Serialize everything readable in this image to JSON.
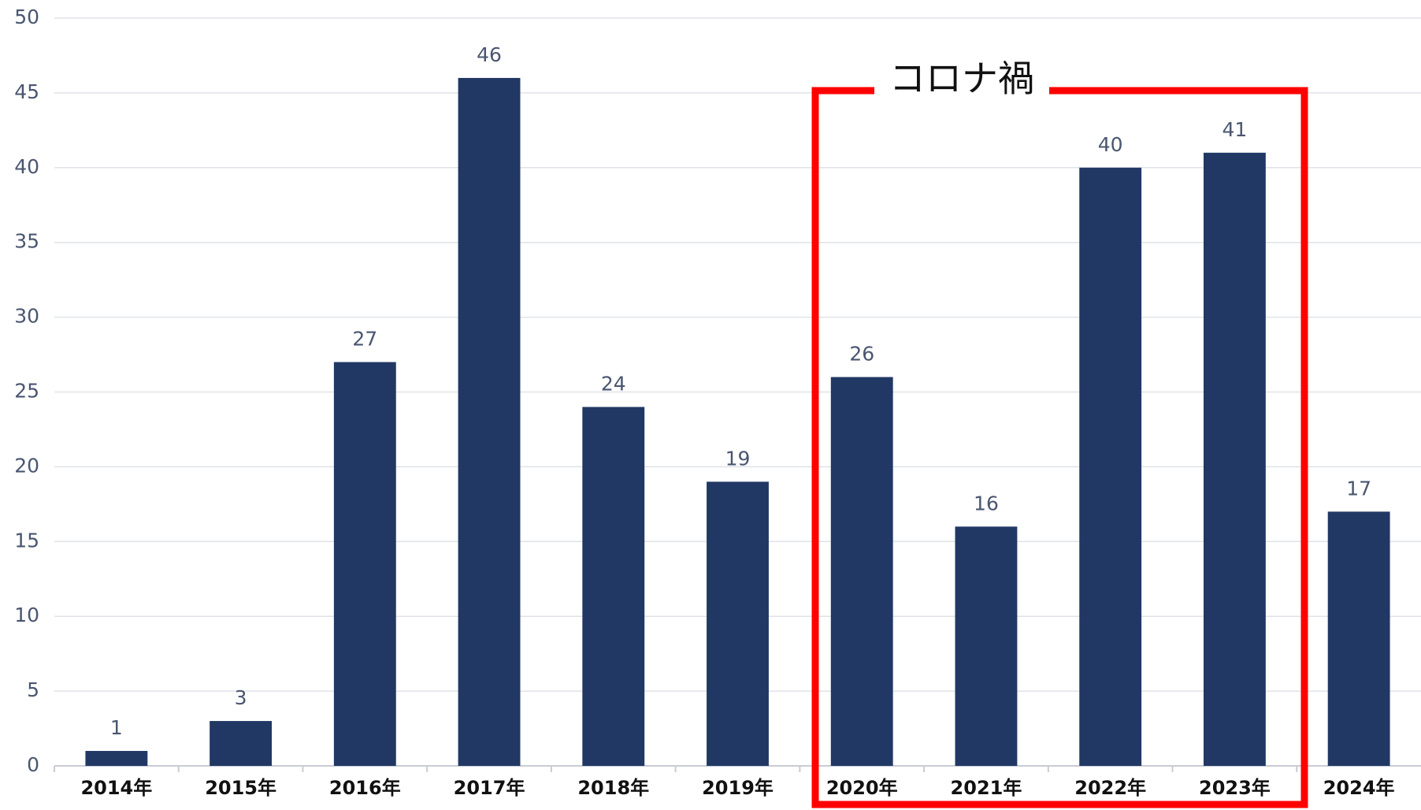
{
  "chart_data": {
    "type": "bar",
    "categories": [
      "2014年",
      "2015年",
      "2016年",
      "2017年",
      "2018年",
      "2019年",
      "2020年",
      "2021年",
      "2022年",
      "2023年",
      "2024年"
    ],
    "values": [
      1,
      3,
      27,
      46,
      24,
      19,
      26,
      16,
      40,
      41,
      17
    ],
    "color": "#213864",
    "ylim": [
      0,
      50
    ],
    "yticks": [
      0,
      5,
      10,
      15,
      20,
      25,
      30,
      35,
      40,
      45,
      50
    ],
    "grid": true,
    "annotation": "コロナ禍"
  }
}
